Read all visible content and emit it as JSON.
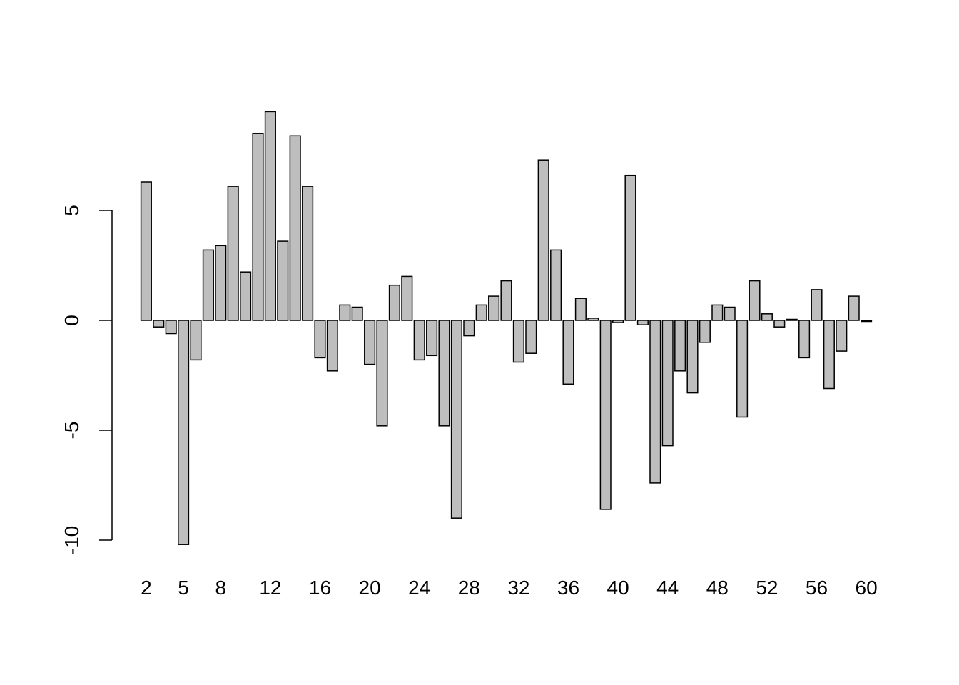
{
  "chart_data": {
    "type": "bar",
    "title": "",
    "xlabel": "",
    "ylabel": "",
    "bar_color": "#bebebe",
    "border_color": "#000000",
    "ylim": [
      -10.3,
      10
    ],
    "y_ticks": [
      -10,
      -5,
      0,
      5
    ],
    "y_tick_labels": [
      "-10",
      "-5",
      "0",
      "5"
    ],
    "x_tick_labels": [
      "2",
      "5",
      "8",
      "12",
      "16",
      "20",
      "24",
      "28",
      "32",
      "36",
      "40",
      "44",
      "48",
      "52",
      "56",
      "60"
    ],
    "categories": [
      "2",
      "3",
      "4",
      "5",
      "6",
      "7",
      "8",
      "9",
      "10",
      "11",
      "12",
      "13",
      "14",
      "15",
      "16",
      "17",
      "18",
      "19",
      "20",
      "21",
      "22",
      "23",
      "24",
      "25",
      "26",
      "27",
      "28",
      "29",
      "30",
      "31",
      "32",
      "33",
      "34",
      "35",
      "36",
      "37",
      "38",
      "39",
      "40",
      "41",
      "42",
      "43",
      "44",
      "45",
      "46",
      "47",
      "48",
      "49",
      "50",
      "51",
      "52",
      "53",
      "54",
      "55",
      "56",
      "57",
      "58",
      "59",
      "60"
    ],
    "values": [
      6.3,
      -0.3,
      -0.6,
      -10.2,
      -1.8,
      3.2,
      3.4,
      6.1,
      2.2,
      8.5,
      9.5,
      3.6,
      8.4,
      6.1,
      -1.7,
      -2.3,
      0.7,
      0.6,
      -2.0,
      -4.8,
      1.6,
      2.0,
      -1.8,
      -1.6,
      -4.8,
      -9.0,
      -0.7,
      0.7,
      1.1,
      1.8,
      -1.9,
      -1.5,
      7.3,
      3.2,
      -2.9,
      1.0,
      0.1,
      -8.6,
      -0.1,
      6.6,
      -0.2,
      -7.4,
      -5.7,
      -2.3,
      -3.3,
      -1.0,
      0.7,
      0.6,
      -4.4,
      1.8,
      0.3,
      -0.3,
      0.05,
      -1.7,
      1.4,
      -3.1,
      -1.4,
      1.1,
      -0.05
    ]
  }
}
